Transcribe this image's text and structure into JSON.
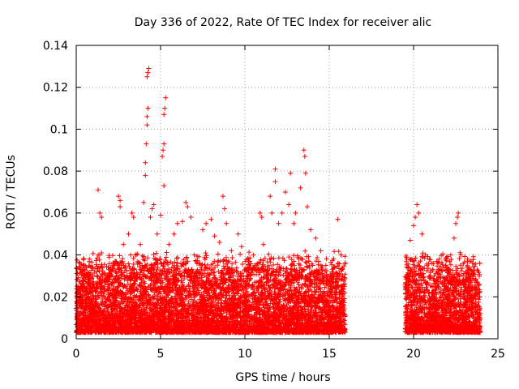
{
  "chart_data": {
    "type": "scatter",
    "title": "Day 336 of 2022, Rate Of TEC Index for receiver alic",
    "xlabel": "GPS time / hours",
    "ylabel": "ROTI / TECUs",
    "xlim": [
      0,
      25
    ],
    "ylim": [
      0,
      0.14
    ],
    "xticks": [
      0,
      5,
      10,
      15,
      20,
      25
    ],
    "yticks": [
      0,
      0.02,
      0.04,
      0.06,
      0.08,
      0.1,
      0.12,
      0.14
    ],
    "xtick_labels": [
      "0",
      "5",
      "10",
      "15",
      "20",
      "25"
    ],
    "ytick_labels": [
      "0",
      "0.02",
      "0.04",
      "0.06",
      "0.08",
      "0.1",
      "0.12",
      "0.14"
    ],
    "grid": true,
    "marker": "+",
    "color": "#ff0000",
    "series": [
      {
        "name": "ROTI",
        "points": [
          [
            0.2,
            0.021
          ],
          [
            0.4,
            0.028
          ],
          [
            0.6,
            0.034
          ],
          [
            1.0,
            0.024
          ],
          [
            1.3,
            0.071
          ],
          [
            1.4,
            0.06
          ],
          [
            1.5,
            0.058
          ],
          [
            1.5,
            0.041
          ],
          [
            2.0,
            0.03
          ],
          [
            2.3,
            0.037
          ],
          [
            2.5,
            0.068
          ],
          [
            2.6,
            0.066
          ],
          [
            2.6,
            0.063
          ],
          [
            2.8,
            0.045
          ],
          [
            3.1,
            0.05
          ],
          [
            3.3,
            0.06
          ],
          [
            3.4,
            0.058
          ],
          [
            3.5,
            0.04
          ],
          [
            3.8,
            0.045
          ],
          [
            4.0,
            0.065
          ],
          [
            4.1,
            0.078
          ],
          [
            4.1,
            0.084
          ],
          [
            4.15,
            0.093
          ],
          [
            4.2,
            0.102
          ],
          [
            4.2,
            0.106
          ],
          [
            4.25,
            0.11
          ],
          [
            4.2,
            0.125
          ],
          [
            4.25,
            0.127
          ],
          [
            4.3,
            0.129
          ],
          [
            4.4,
            0.058
          ],
          [
            4.5,
            0.062
          ],
          [
            4.6,
            0.064
          ],
          [
            4.8,
            0.05
          ],
          [
            5.1,
            0.087
          ],
          [
            5.15,
            0.09
          ],
          [
            5.2,
            0.093
          ],
          [
            5.2,
            0.107
          ],
          [
            5.25,
            0.11
          ],
          [
            5.3,
            0.115
          ],
          [
            5.2,
            0.073
          ],
          [
            5.0,
            0.059
          ],
          [
            5.5,
            0.045
          ],
          [
            5.8,
            0.05
          ],
          [
            6.0,
            0.055
          ],
          [
            6.3,
            0.056
          ],
          [
            6.5,
            0.065
          ],
          [
            6.6,
            0.063
          ],
          [
            6.8,
            0.058
          ],
          [
            7.0,
            0.04
          ],
          [
            7.5,
            0.052
          ],
          [
            7.7,
            0.055
          ],
          [
            8.0,
            0.057
          ],
          [
            8.2,
            0.049
          ],
          [
            8.5,
            0.046
          ],
          [
            8.7,
            0.068
          ],
          [
            8.8,
            0.062
          ],
          [
            8.9,
            0.055
          ],
          [
            9.2,
            0.042
          ],
          [
            9.6,
            0.05
          ],
          [
            9.8,
            0.044
          ],
          [
            10.2,
            0.038
          ],
          [
            10.5,
            0.04
          ],
          [
            10.9,
            0.06
          ],
          [
            11.0,
            0.058
          ],
          [
            11.1,
            0.045
          ],
          [
            11.5,
            0.068
          ],
          [
            11.6,
            0.06
          ],
          [
            11.8,
            0.081
          ],
          [
            11.8,
            0.075
          ],
          [
            12.0,
            0.055
          ],
          [
            12.2,
            0.06
          ],
          [
            12.4,
            0.07
          ],
          [
            12.6,
            0.064
          ],
          [
            12.7,
            0.079
          ],
          [
            12.9,
            0.055
          ],
          [
            13.0,
            0.06
          ],
          [
            13.3,
            0.072
          ],
          [
            13.5,
            0.09
          ],
          [
            13.55,
            0.087
          ],
          [
            13.6,
            0.079
          ],
          [
            13.7,
            0.063
          ],
          [
            13.9,
            0.052
          ],
          [
            14.2,
            0.048
          ],
          [
            14.5,
            0.042
          ],
          [
            14.8,
            0.035
          ],
          [
            15.2,
            0.03
          ],
          [
            15.5,
            0.057
          ],
          [
            15.7,
            0.04
          ],
          [
            15.9,
            0.025
          ],
          [
            19.6,
            0.038
          ],
          [
            19.8,
            0.047
          ],
          [
            20.0,
            0.054
          ],
          [
            20.1,
            0.058
          ],
          [
            20.2,
            0.064
          ],
          [
            20.3,
            0.06
          ],
          [
            20.5,
            0.05
          ],
          [
            20.7,
            0.04
          ],
          [
            21.0,
            0.03
          ],
          [
            21.3,
            0.025
          ],
          [
            21.6,
            0.022
          ],
          [
            21.9,
            0.035
          ],
          [
            22.2,
            0.04
          ],
          [
            22.4,
            0.048
          ],
          [
            22.5,
            0.055
          ],
          [
            22.6,
            0.058
          ],
          [
            22.65,
            0.06
          ],
          [
            22.8,
            0.04
          ],
          [
            23.1,
            0.032
          ],
          [
            23.4,
            0.03
          ],
          [
            23.7,
            0.028
          ],
          [
            23.9,
            0.022
          ]
        ],
        "dense_band": {
          "description_free": true,
          "segments": [
            {
              "x_start": 0.0,
              "x_end": 15.95,
              "y_min": 0.003,
              "y_typical_max": 0.03
            },
            {
              "x_start": 19.5,
              "x_end": 23.95,
              "y_min": 0.003,
              "y_typical_max": 0.03
            }
          ]
        }
      }
    ]
  }
}
